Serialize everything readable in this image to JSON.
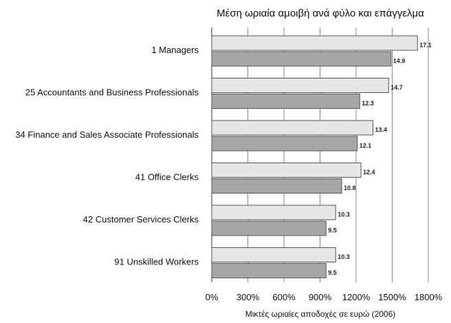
{
  "chart_data": {
    "type": "bar",
    "orientation": "horizontal",
    "title": "Μέση ωριαία αμοιβή ανά φύλο και επάγγελμα",
    "xlabel": "Μικτές ωριαίες αποδοχές σε ευρώ (2006)",
    "ylabel": "",
    "categories": [
      "1 Managers",
      "25 Accountants and Business Professionals",
      "34 Finance and Sales Associate Professionals",
      "41 Office Clerks",
      "42 Customer Services Clerks",
      "91 Unskilled Workers"
    ],
    "series": [
      {
        "values": [
          17.1,
          14.7,
          13.4,
          12.4,
          10.3,
          10.3
        ],
        "color": "#e6e6e6"
      },
      {
        "values": [
          14.9,
          12.3,
          12.1,
          10.8,
          9.5,
          9.5
        ],
        "color": "#a6a6a6"
      }
    ],
    "data_labels": {
      "series0": [
        "17.1",
        "14.7",
        "13.4",
        "12.4",
        "10.3",
        "10.3"
      ],
      "series1": [
        "14.9",
        "12.3",
        "12.1",
        "10.8",
        "9.5",
        "9.5"
      ]
    },
    "xlim": [
      0,
      18
    ],
    "xticks": [
      0,
      3,
      6,
      9,
      12,
      15,
      18
    ],
    "xtick_labels": [
      "0%",
      "300%",
      "600%",
      "900%",
      "1200%",
      "1500%",
      "1800%"
    ],
    "grid": true,
    "legend": false
  }
}
